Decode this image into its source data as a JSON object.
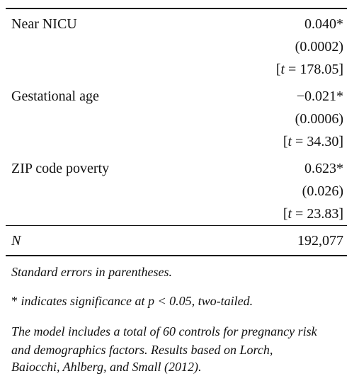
{
  "table": {
    "rows": [
      {
        "label": "Near NICU",
        "coef": "0.040*",
        "se": "(0.0002)",
        "t_var": "t",
        "t_value": "178.05"
      },
      {
        "label": "Gestational age",
        "coef": "−0.021*",
        "se": "(0.0006)",
        "t_var": "t",
        "t_value": "34.30"
      },
      {
        "label": "ZIP code poverty",
        "coef": "0.623*",
        "se": "(0.026)",
        "t_var": "t",
        "t_value": "23.83"
      }
    ],
    "n_label": "N",
    "n_value": "192,077"
  },
  "notes": {
    "standard_errors": "Standard errors in parentheses.",
    "significance_mark": "*",
    "significance_text": "indicates significance at p < 0.05, two-tailed.",
    "model_line_1": "The model includes a total of 60 controls for pregnancy risk",
    "model_line_2": "and demographics factors. Results based on Lorch,",
    "model_line_3": "Baiocchi, Ahlberg, and Small (2012)."
  }
}
